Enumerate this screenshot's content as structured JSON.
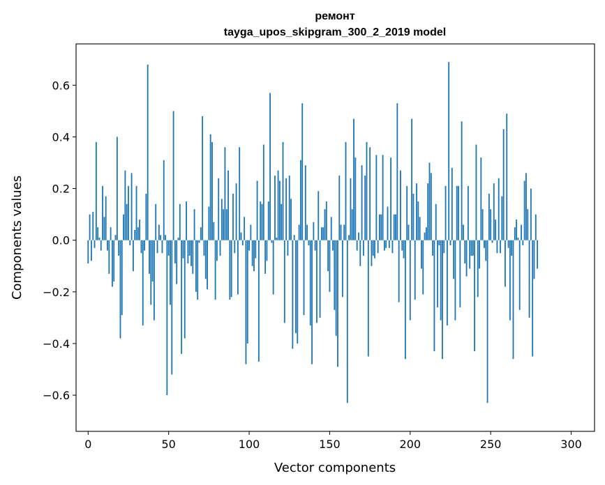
{
  "chart_data": {
    "type": "bar",
    "title": "ремонт",
    "subtitle": "tayga_upos_skipgram_300_2_2019 model",
    "xlabel": "Vector components",
    "ylabel": "Components values",
    "xlim": [
      -7.5,
      314.5
    ],
    "ylim": [
      -0.74,
      0.76
    ],
    "xticks": [
      0,
      50,
      100,
      150,
      200,
      250,
      300
    ],
    "xtick_labels": [
      "0",
      "50",
      "100",
      "150",
      "200",
      "250",
      "300"
    ],
    "yticks": [
      -0.6,
      -0.4,
      -0.2,
      0.0,
      0.2,
      0.4,
      0.6
    ],
    "ytick_labels": [
      "−0.6",
      "−0.4",
      "−0.2",
      "0.0",
      "0.2",
      "0.4",
      "0.6"
    ],
    "grid": false,
    "bar_color": "#1f77b4",
    "values": [
      -0.09,
      0.1,
      -0.08,
      0.11,
      -0.03,
      0.38,
      0.05,
      0.01,
      -0.04,
      0.21,
      0.09,
      0.17,
      -0.04,
      -0.13,
      0.05,
      -0.18,
      -0.16,
      0.02,
      0.4,
      -0.06,
      -0.38,
      -0.29,
      0.1,
      0.27,
      0.14,
      0.21,
      -0.02,
      0.26,
      -0.12,
      0.04,
      0.21,
      0.05,
      0.08,
      -0.05,
      -0.33,
      -0.04,
      0.18,
      0.68,
      -0.13,
      -0.25,
      -0.16,
      -0.31,
      0.14,
      -0.05,
      0.06,
      0.02,
      -0.05,
      0.31,
      0.02,
      -0.6,
      -0.06,
      -0.25,
      -0.52,
      0.5,
      -0.09,
      -0.17,
      0.01,
      0.14,
      -0.44,
      -0.07,
      -0.38,
      0.15,
      -0.09,
      -0.06,
      -0.1,
      -0.13,
      0.12,
      -0.2,
      -0.23,
      -0.01,
      0.05,
      0.48,
      -0.06,
      -0.15,
      -0.19,
      0.13,
      0.41,
      0.38,
      0.07,
      -0.23,
      -0.08,
      0.24,
      -0.06,
      0.16,
      0.12,
      0.36,
      0.12,
      0.27,
      -0.23,
      -0.22,
      0.18,
      -0.05,
      0.22,
      -0.21,
      0.36,
      0.03,
      -0.02,
      0.09,
      -0.48,
      -0.4,
      -0.04,
      0.06,
      -0.1,
      -0.12,
      -0.07,
      0.23,
      -0.47,
      0.15,
      0.14,
      0.37,
      -0.13,
      -0.08,
      0.15,
      0.57,
      -0.01,
      -0.21,
      0.25,
      0.01,
      0.27,
      0.23,
      0.14,
      0.38,
      -0.32,
      0.24,
      -0.06,
      0.25,
      0.16,
      -0.42,
      0.02,
      -0.36,
      -0.4,
      0.06,
      0.31,
      0.53,
      -0.29,
      0.29,
      0.06,
      -0.02,
      -0.33,
      -0.48,
      0.07,
      -0.04,
      -0.32,
      0.19,
      -0.3,
      0.05,
      0.05,
      0.12,
      0.15,
      -0.12,
      -0.2,
      0.09,
      -0.04,
      -0.27,
      -0.37,
      -0.49,
      0.25,
      0.06,
      -0.22,
      0.06,
      0.38,
      -0.63,
      0.02,
      0.24,
      0.12,
      0.47,
      0.32,
      -0.04,
      0.03,
      -0.1,
      0.29,
      -0.06,
      0.25,
      0.38,
      -0.45,
      0.36,
      -0.1,
      -0.06,
      -0.07,
      0.33,
      -0.05,
      0.1,
      0.1,
      0.33,
      -0.04,
      -0.03,
      0.13,
      -0.03,
      0.32,
      -0.05,
      0.1,
      0.1,
      0.53,
      -0.24,
      0.27,
      -0.04,
      -0.07,
      -0.46,
      0.21,
      0.06,
      -0.31,
      0.47,
      0.18,
      -0.23,
      0.22,
      0.15,
      0.09,
      -0.11,
      -0.21,
      0.03,
      0.05,
      0.22,
      0.3,
      0.26,
      -0.06,
      -0.43,
      0.14,
      -0.26,
      -0.02,
      -0.31,
      -0.46,
      -0.05,
      0.21,
      -0.33,
      0.69,
      -0.02,
      0.28,
      -0.15,
      -0.31,
      0.21,
      0.21,
      -0.26,
      0.46,
      0.06,
      -0.09,
      -0.14,
      0.21,
      -0.11,
      -0.06,
      -0.06,
      -0.43,
      0.37,
      -0.22,
      -0.11,
      0.32,
      0.12,
      -0.03,
      -0.08,
      -0.63,
      0.18,
      0.12,
      -0.01,
      0.22,
      0.08,
      -0.05,
      0.24,
      -0.05,
      0.17,
      0.43,
      -0.18,
      0.49,
      -0.03,
      -0.31,
      -0.06,
      -0.46,
      0.05,
      0.08,
      0.01,
      -0.27,
      0.06,
      -0.02,
      0.23,
      0.26,
      0.12,
      -0.3,
      0.2,
      -0.45,
      -0.15,
      0.1,
      -0.11
    ]
  }
}
